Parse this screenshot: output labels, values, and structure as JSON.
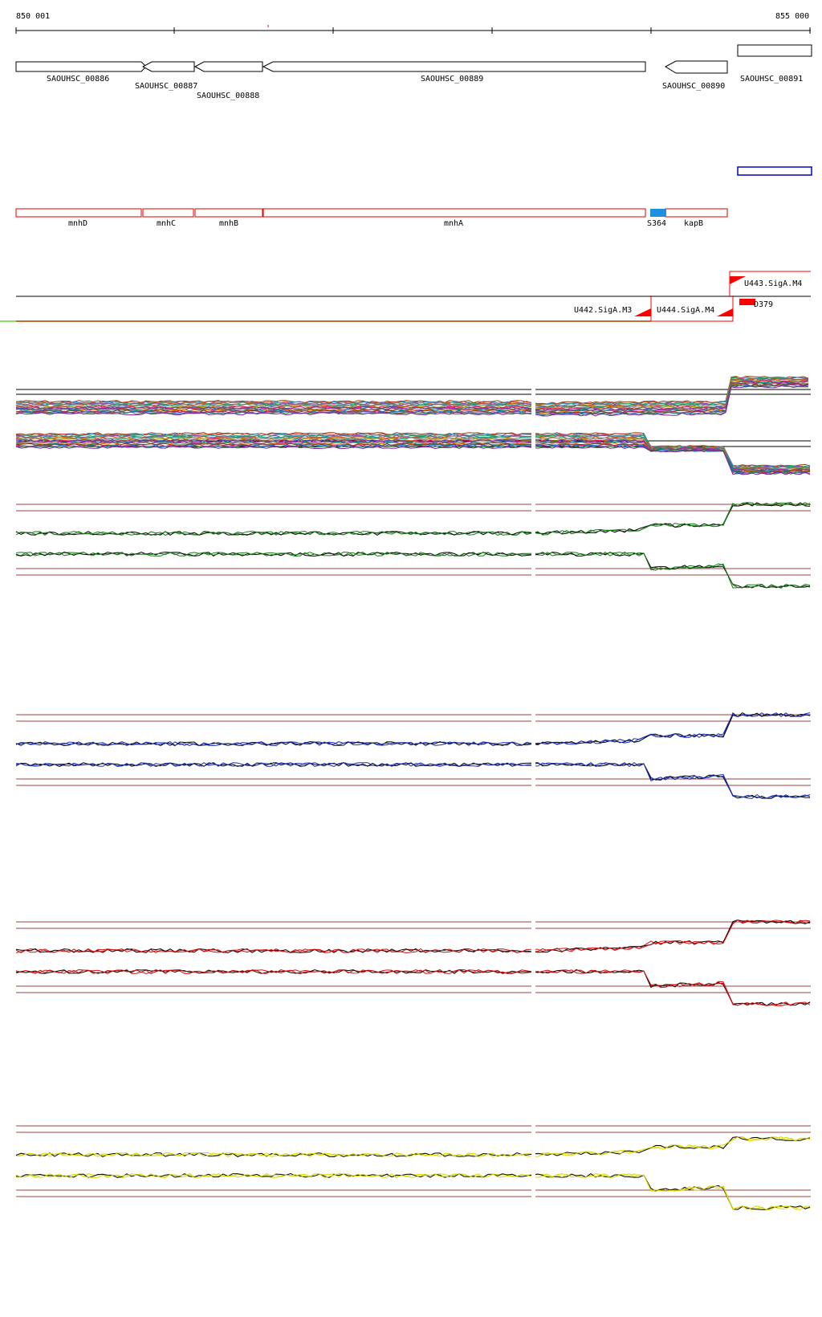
{
  "scale": {
    "start_label": "850 001",
    "end_label": "855 000"
  },
  "genes": [
    {
      "name": "SAOUHSC_00886",
      "strand": "+"
    },
    {
      "name": "SAOUHSC_00887",
      "strand": "-"
    },
    {
      "name": "SAOUHSC_00888",
      "strand": "-"
    },
    {
      "name": "SAOUHSC_00889",
      "strand": "-"
    },
    {
      "name": "SAOUHSC_00890",
      "strand": "-"
    },
    {
      "name": "SAOUHSC_00891",
      "strand": "+"
    }
  ],
  "annotations": [
    {
      "name": "mnhD"
    },
    {
      "name": "mnhC"
    },
    {
      "name": "mnhB"
    },
    {
      "name": "mnhA"
    },
    {
      "name": "S364",
      "color": "#1f8fe0"
    },
    {
      "name": "kapB"
    }
  ],
  "transcription_units": [
    {
      "name": "U442.SigA.M3"
    },
    {
      "name": "U444.SigA.M4"
    },
    {
      "name": "U443.SigA.M4"
    },
    {
      "name": "D379"
    }
  ],
  "colors": {
    "gene_outline": "#000000",
    "annotation_outline": "#e00000",
    "annotation_blue": "#0000cc",
    "tu_red": "#ff0000",
    "green_baseline": "#88dd66",
    "threshold_line": "#a04040"
  },
  "expression_tracks": [
    {
      "color": "#1a7a1a"
    },
    {
      "color": "#1d2fb0"
    },
    {
      "color": "#d01010"
    },
    {
      "color": "#d8d800"
    }
  ]
}
